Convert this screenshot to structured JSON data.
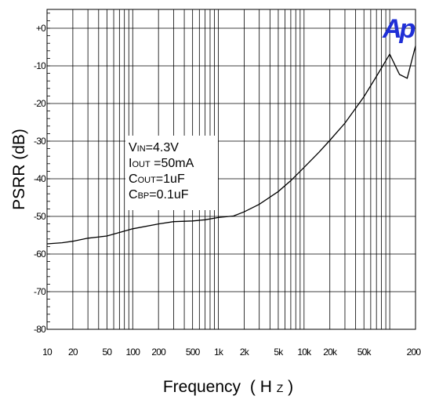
{
  "chart_data": {
    "type": "line",
    "xlabel": "Frequency",
    "xlabel_unit_main": "H",
    "xlabel_unit_sub": "Z",
    "xlabel_paren_open": "(",
    "xlabel_paren_close": ")",
    "ylabel": "PSRR (dB)",
    "xscale": "log",
    "xlim": [
      10,
      200000
    ],
    "ylim": [
      -80,
      5
    ],
    "grid": true,
    "x_ticks": [
      {
        "value": 10,
        "label": "10"
      },
      {
        "value": 20,
        "label": "20"
      },
      {
        "value": 50,
        "label": "50"
      },
      {
        "value": 100,
        "label": "100"
      },
      {
        "value": 200,
        "label": "200"
      },
      {
        "value": 500,
        "label": "500"
      },
      {
        "value": 1000,
        "label": "1k"
      },
      {
        "value": 2000,
        "label": "2k"
      },
      {
        "value": 5000,
        "label": "5k"
      },
      {
        "value": 10000,
        "label": "10k"
      },
      {
        "value": 20000,
        "label": "20k"
      },
      {
        "value": 50000,
        "label": "50k"
      },
      {
        "value": 200000,
        "label": "200k"
      }
    ],
    "y_ticks": [
      {
        "value": 0,
        "label": "+0"
      },
      {
        "value": -10,
        "label": "-10"
      },
      {
        "value": -20,
        "label": "-20"
      },
      {
        "value": -30,
        "label": "-30"
      },
      {
        "value": -40,
        "label": "-40"
      },
      {
        "value": -50,
        "label": "-50"
      },
      {
        "value": -60,
        "label": "-60"
      },
      {
        "value": -70,
        "label": "-70"
      },
      {
        "value": -80,
        "label": "-80"
      }
    ],
    "series": [
      {
        "color": "#000000",
        "x": [
          10,
          15,
          20,
          30,
          50,
          100,
          200,
          300,
          500,
          700,
          1000,
          1500,
          2000,
          3000,
          5000,
          7000,
          10000,
          15000,
          20000,
          30000,
          50000,
          70000,
          100000,
          130000,
          160000,
          200000
        ],
        "y": [
          -57.3,
          -57.0,
          -56.6,
          -55.8,
          -55.2,
          -53.3,
          -52.0,
          -51.4,
          -51.2,
          -50.9,
          -50.3,
          -49.9,
          -48.8,
          -46.8,
          -43.4,
          -40.5,
          -37.0,
          -32.9,
          -29.8,
          -25.2,
          -18.2,
          -12.8,
          -6.9,
          -12.3,
          -13.3,
          -4.7
        ]
      }
    ],
    "annotation": {
      "lines": [
        {
          "main": "V",
          "sub": "IN",
          "rest": "=4.3V"
        },
        {
          "main": "I",
          "sub": "OUT",
          "rest": " =50mA"
        },
        {
          "main": "C",
          "sub": "OUT",
          "rest": "=1uF"
        },
        {
          "main": "C",
          "sub": "BP",
          "rest": "=0.1uF"
        }
      ]
    },
    "logo_text": "Ap",
    "logo_color": "#1f2fd6"
  }
}
